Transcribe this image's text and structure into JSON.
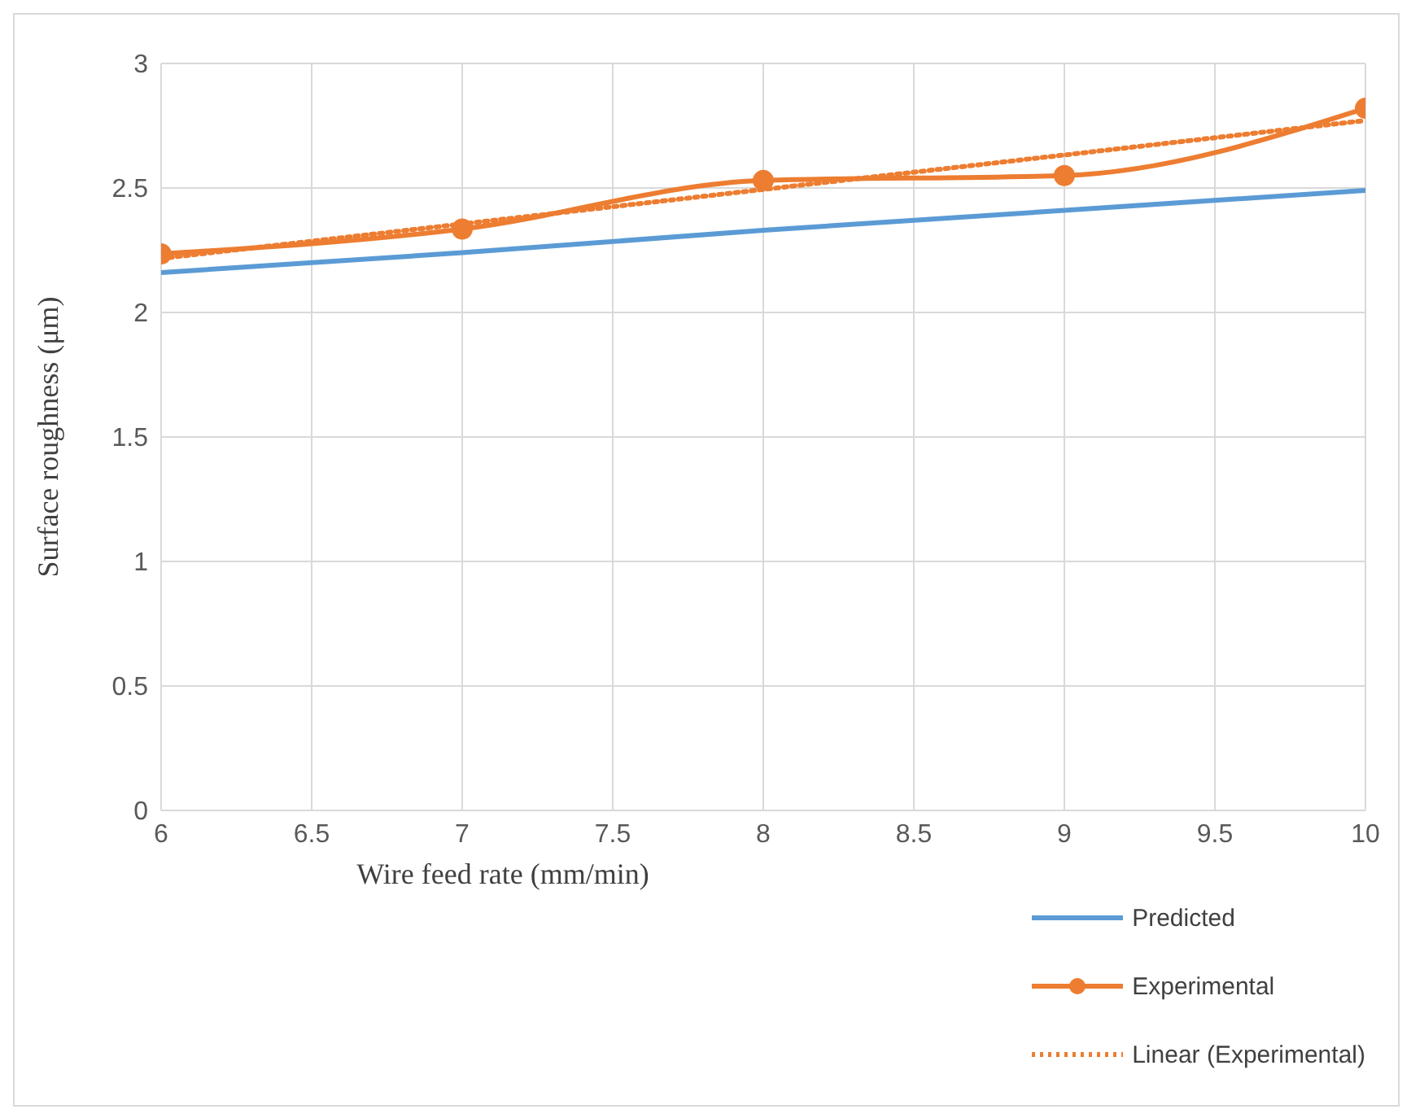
{
  "chart_data": {
    "type": "line",
    "xlabel": "Wire feed rate (mm/min)",
    "ylabel": "Surface roughness (μm)",
    "x": [
      6,
      7,
      8,
      9,
      10
    ],
    "series": [
      {
        "name": "Predicted",
        "color": "#5b9bd5",
        "values": [
          2.16,
          2.24,
          2.33,
          2.41,
          2.49
        ],
        "marker": "none",
        "line_style": "solid"
      },
      {
        "name": "Experimental",
        "color": "#ed7d31",
        "values": [
          2.235,
          2.335,
          2.53,
          2.55,
          2.82
        ],
        "marker": "circle",
        "line_style": "solid"
      },
      {
        "name": "Linear (Experimental)",
        "color": "#ed7d31",
        "x": [
          6,
          10
        ],
        "values": [
          2.217,
          2.771
        ],
        "marker": "none",
        "line_style": "dotted"
      }
    ],
    "xlim": [
      6,
      10
    ],
    "xticks": [
      6,
      6.5,
      7,
      7.5,
      8,
      8.5,
      9,
      9.5,
      10
    ],
    "ylim": [
      0,
      3
    ],
    "yticks": [
      0,
      0.5,
      1,
      1.5,
      2,
      2.5,
      3
    ],
    "grid": true,
    "legend": "bottom right"
  }
}
